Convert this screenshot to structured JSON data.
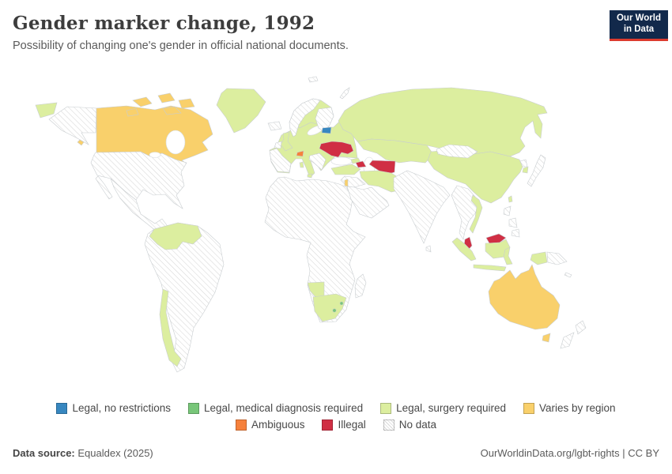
{
  "header": {
    "title": "Gender marker change, 1992",
    "subtitle": "Possibility of changing one's gender in official national documents."
  },
  "logo": {
    "line1": "Our World",
    "line2": "in Data",
    "bg": "#12294b",
    "accent": "#dc3b2e"
  },
  "categories": {
    "legal_no_restrictions": {
      "label": "Legal, no restrictions",
      "color": "#3787c0"
    },
    "legal_medical_diagnosis": {
      "label": "Legal, medical diagnosis required",
      "color": "#78c679"
    },
    "legal_surgery": {
      "label": "Legal, surgery required",
      "color": "#dcee9f"
    },
    "varies_by_region": {
      "label": "Varies by region",
      "color": "#f9d06b"
    },
    "ambiguous": {
      "label": "Ambiguous",
      "color": "#f6813c"
    },
    "illegal": {
      "label": "Illegal",
      "color": "#d02f44"
    },
    "no_data": {
      "label": "No data",
      "color": "hatch"
    }
  },
  "legend": {
    "row1": [
      "legal_no_restrictions",
      "legal_medical_diagnosis",
      "legal_surgery",
      "varies_by_region"
    ],
    "row2": [
      "ambiguous",
      "illegal",
      "no_data"
    ]
  },
  "map": {
    "regions": {
      "chukotka": "legal_surgery",
      "alaska": "no_data",
      "canada": "varies_by_region",
      "arctic_island_1": "varies_by_region",
      "arctic_island_2": "varies_by_region",
      "arctic_island_3": "varies_by_region",
      "arctic_island_4": "varies_by_region",
      "arctic_island_5": "varies_by_region",
      "vancouver_island": "varies_by_region",
      "usa": "no_data",
      "baja_california": "no_data",
      "mexico_central_america": "no_data",
      "cuba": "no_data",
      "hispaniola": "no_data",
      "greenland": "legal_surgery",
      "south_america": "no_data",
      "colombia_venezuela": "legal_surgery",
      "chile": "legal_surgery",
      "iceland": "no_data",
      "scandinavia": "legal_surgery",
      "norway": "no_data",
      "finland": "no_data",
      "europe_mainland": "legal_surgery",
      "uk": "legal_surgery",
      "ireland": "no_data",
      "estonia": "legal_no_restrictions",
      "svalbard": "no_data",
      "novaya_zemlya": "no_data",
      "russia": "legal_surgery",
      "central_asia": "legal_surgery",
      "mongolia": "no_data",
      "china": "legal_surgery",
      "japan": "no_data",
      "north_korea": "no_data",
      "south_korea": "legal_surgery",
      "taiwan": "legal_surgery",
      "ukraine": "illegal",
      "switzerland": "ambiguous",
      "balkans": "no_data",
      "iberia": "no_data",
      "sardinia": "legal_surgery",
      "sicily": "legal_surgery",
      "turkey": "legal_surgery",
      "georgia": "legal_surgery",
      "azerbaijan": "illegal",
      "turkmenistan": "illegal",
      "iran": "legal_surgery",
      "iraq_syria": "no_data",
      "arabia": "no_data",
      "israel": "varies_by_region",
      "south_asia": "no_data",
      "sri_lanka": "no_data",
      "se_asia_mainland": "no_data",
      "vietnam": "legal_surgery",
      "malaysia_peninsula": "illegal",
      "malaysia_borneo": "illegal",
      "sumatra": "legal_surgery",
      "borneo": "legal_surgery",
      "java": "legal_surgery",
      "sulawesi": "legal_surgery",
      "west_papua": "legal_surgery",
      "papua_new_guinea": "no_data",
      "philippines_north": "no_data",
      "philippines_central": "no_data",
      "philippines_south": "no_data",
      "new_caledonia": "no_data",
      "australia": "varies_by_region",
      "tasmania": "varies_by_region",
      "new_zealand_north": "no_data",
      "new_zealand_south": "no_data",
      "africa": "no_data",
      "namibia": "legal_surgery",
      "south_africa": "legal_surgery",
      "lesotho": "legal_medical_diagnosis",
      "eswatini": "legal_medical_diagnosis",
      "madagascar": "no_data"
    }
  },
  "footer": {
    "source_label": "Data source:",
    "source_value": " Equaldex (2025)",
    "right": "OurWorldinData.org/lgbt-rights | CC BY"
  }
}
